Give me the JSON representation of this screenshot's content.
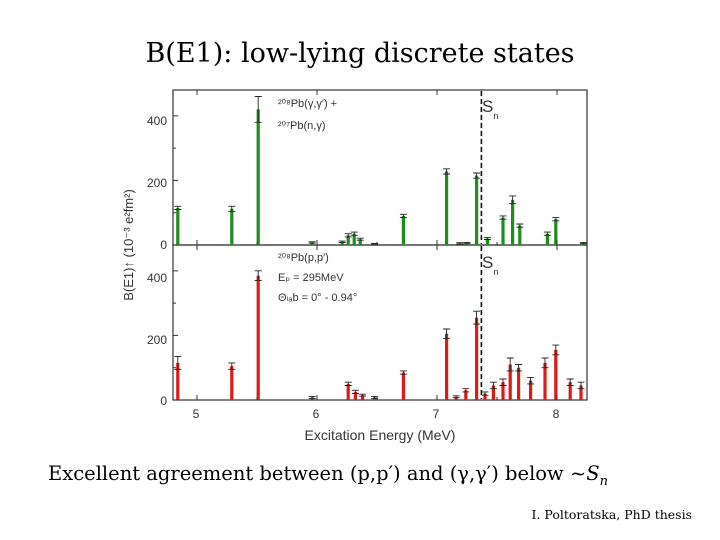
{
  "slide": {
    "title": "B(E1): low-lying discrete states",
    "caption_prefix": "Excellent agreement between (p,p′) and (γ,γ′) below ~",
    "caption_symbol": "S",
    "caption_sub": "n",
    "credit": "I. Poltoratska, PhD thesis"
  },
  "colors": {
    "top_bars": "#1e8c1e",
    "bottom_bars": "#dd1a1a",
    "axis": "#333333",
    "error": "#222222"
  },
  "chart_data": [
    {
      "id": "top",
      "type": "bar",
      "ylim": [
        0,
        480
      ],
      "xlim": [
        4.8,
        8.25
      ],
      "xticks": [
        5,
        6,
        7,
        8
      ],
      "yticks": [
        0,
        200,
        400
      ],
      "ytick_labels": [
        "0",
        "200",
        "400"
      ],
      "legend": {
        "line1": "²⁰⁸Pb(γ,γ′) +",
        "line2": "²⁰⁷Pb(n,γ)"
      },
      "threshold": {
        "x": 7.37,
        "label": "S",
        "label_sub": "n"
      },
      "bars": [
        {
          "x": 4.84,
          "v": 115,
          "e": 5
        },
        {
          "x": 5.29,
          "v": 112,
          "e": 8
        },
        {
          "x": 5.51,
          "v": 420,
          "e": 40
        },
        {
          "x": 5.96,
          "v": 8,
          "e": 2
        },
        {
          "x": 6.21,
          "v": 10,
          "e": 2
        },
        {
          "x": 6.26,
          "v": 30,
          "e": 5
        },
        {
          "x": 6.31,
          "v": 35,
          "e": 5
        },
        {
          "x": 6.36,
          "v": 18,
          "e": 3
        },
        {
          "x": 6.48,
          "v": 4,
          "e": 1
        },
        {
          "x": 6.72,
          "v": 90,
          "e": 5
        },
        {
          "x": 7.08,
          "v": 228,
          "e": 8
        },
        {
          "x": 7.19,
          "v": 5,
          "e": 2
        },
        {
          "x": 7.25,
          "v": 6,
          "e": 2
        },
        {
          "x": 7.33,
          "v": 215,
          "e": 8
        },
        {
          "x": 7.42,
          "v": 20,
          "e": 3
        },
        {
          "x": 7.55,
          "v": 85,
          "e": 5
        },
        {
          "x": 7.63,
          "v": 140,
          "e": 12
        },
        {
          "x": 7.69,
          "v": 60,
          "e": 5
        },
        {
          "x": 7.92,
          "v": 35,
          "e": 5
        },
        {
          "x": 7.99,
          "v": 80,
          "e": 5
        },
        {
          "x": 8.22,
          "v": 6,
          "e": 2
        }
      ]
    },
    {
      "id": "bottom",
      "type": "bar",
      "ylabel": "B(E1)↑ (10⁻³ e²fm²)",
      "xlabel": "Excitation Energy (MeV)",
      "ylim": [
        0,
        480
      ],
      "xlim": [
        4.8,
        8.25
      ],
      "xticks": [
        5,
        6,
        7,
        8
      ],
      "xtick_labels": [
        "5",
        "6",
        "7",
        "8"
      ],
      "yticks": [
        0,
        200,
        400
      ],
      "ytick_labels": [
        "0",
        "200",
        "400"
      ],
      "legend": {
        "line1": "²⁰⁸Pb(p,p′)",
        "line2": "Eₚ = 295MeV",
        "line3": "Θₗₐb = 0° - 0.94°"
      },
      "threshold": {
        "x": 7.37,
        "label": "S",
        "label_sub": "n"
      },
      "bars": [
        {
          "x": 4.84,
          "v": 115,
          "e": 20
        },
        {
          "x": 5.29,
          "v": 105,
          "e": 10
        },
        {
          "x": 5.51,
          "v": 385,
          "e": 15
        },
        {
          "x": 5.96,
          "v": 8,
          "e": 3
        },
        {
          "x": 6.26,
          "v": 50,
          "e": 5
        },
        {
          "x": 6.32,
          "v": 25,
          "e": 5
        },
        {
          "x": 6.38,
          "v": 15,
          "e": 3
        },
        {
          "x": 6.48,
          "v": 8,
          "e": 3
        },
        {
          "x": 6.72,
          "v": 85,
          "e": 5
        },
        {
          "x": 7.08,
          "v": 205,
          "e": 15
        },
        {
          "x": 7.16,
          "v": 10,
          "e": 3
        },
        {
          "x": 7.24,
          "v": 30,
          "e": 5
        },
        {
          "x": 7.33,
          "v": 255,
          "e": 20
        },
        {
          "x": 7.4,
          "v": 20,
          "e": 5
        },
        {
          "x": 7.47,
          "v": 45,
          "e": 10
        },
        {
          "x": 7.55,
          "v": 55,
          "e": 10
        },
        {
          "x": 7.61,
          "v": 110,
          "e": 20
        },
        {
          "x": 7.68,
          "v": 100,
          "e": 10
        },
        {
          "x": 7.78,
          "v": 60,
          "e": 10
        },
        {
          "x": 7.9,
          "v": 115,
          "e": 15
        },
        {
          "x": 7.99,
          "v": 155,
          "e": 15
        },
        {
          "x": 8.11,
          "v": 55,
          "e": 10
        },
        {
          "x": 8.2,
          "v": 45,
          "e": 10
        }
      ]
    }
  ]
}
